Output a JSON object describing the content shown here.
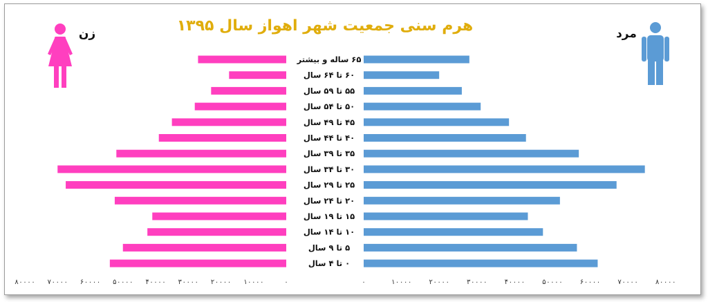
{
  "chart_data": {
    "type": "bar",
    "orientation": "horizontal",
    "subtype": "population-pyramid",
    "title": "هرم سنی جمعیت شهر اهواز سال ۱۳۹۵",
    "categories": [
      "۶۵ ساله و بیشتر",
      "۶۰ تا ۶۴ سال",
      "۵۵ تا ۵۹ سال",
      "۵۰ تا ۵۴ سال",
      "۴۵ تا ۴۹ سال",
      "۴۰ تا ۴۴ سال",
      "۳۵ تا ۳۹ سال",
      "۳۰ تا ۳۴ سال",
      "۲۵ تا ۲۹ سال",
      "۲۰ تا ۲۴ سال",
      "۱۵ تا ۱۹ سال",
      "۱۰ تا ۱۴ سال",
      "۵ تا ۹ سال",
      "۰ تا ۴ سال"
    ],
    "series": [
      {
        "name": "زن",
        "color": "#ff3fbf",
        "side": "left",
        "values": [
          27000,
          17500,
          23000,
          28000,
          35000,
          39000,
          52000,
          70000,
          67500,
          52500,
          41000,
          42500,
          50000,
          54000
        ]
      },
      {
        "name": "مرد",
        "color": "#5b9bd5",
        "side": "right",
        "values": [
          28000,
          20000,
          26000,
          31000,
          38500,
          43000,
          57000,
          74500,
          67000,
          52000,
          43500,
          47500,
          56500,
          62000
        ]
      }
    ],
    "left_axis": {
      "range": [
        0,
        80000
      ],
      "ticks": [
        0,
        10000,
        20000,
        30000,
        40000,
        50000,
        60000,
        70000,
        80000
      ],
      "tick_labels": [
        "۰",
        "۱۰۰۰۰",
        "۲۰۰۰۰",
        "۳۰۰۰۰",
        "۴۰۰۰۰",
        "۵۰۰۰۰",
        "۶۰۰۰۰",
        "۷۰۰۰۰",
        "۸۰۰۰۰"
      ]
    },
    "right_axis": {
      "range": [
        0,
        85000
      ],
      "ticks": [
        0,
        10000,
        20000,
        30000,
        40000,
        50000,
        60000,
        70000,
        80000
      ],
      "tick_labels": [
        "۰",
        "۱۰۰۰۰",
        "۲۰۰۰۰",
        "۳۰۰۰۰",
        "۴۰۰۰۰",
        "۵۰۰۰۰",
        "۶۰۰۰۰",
        "۷۰۰۰۰",
        "۸۰۰۰۰"
      ]
    },
    "grid": false,
    "legend": "none",
    "icons": {
      "left": "woman-icon",
      "right": "man-icon"
    }
  }
}
